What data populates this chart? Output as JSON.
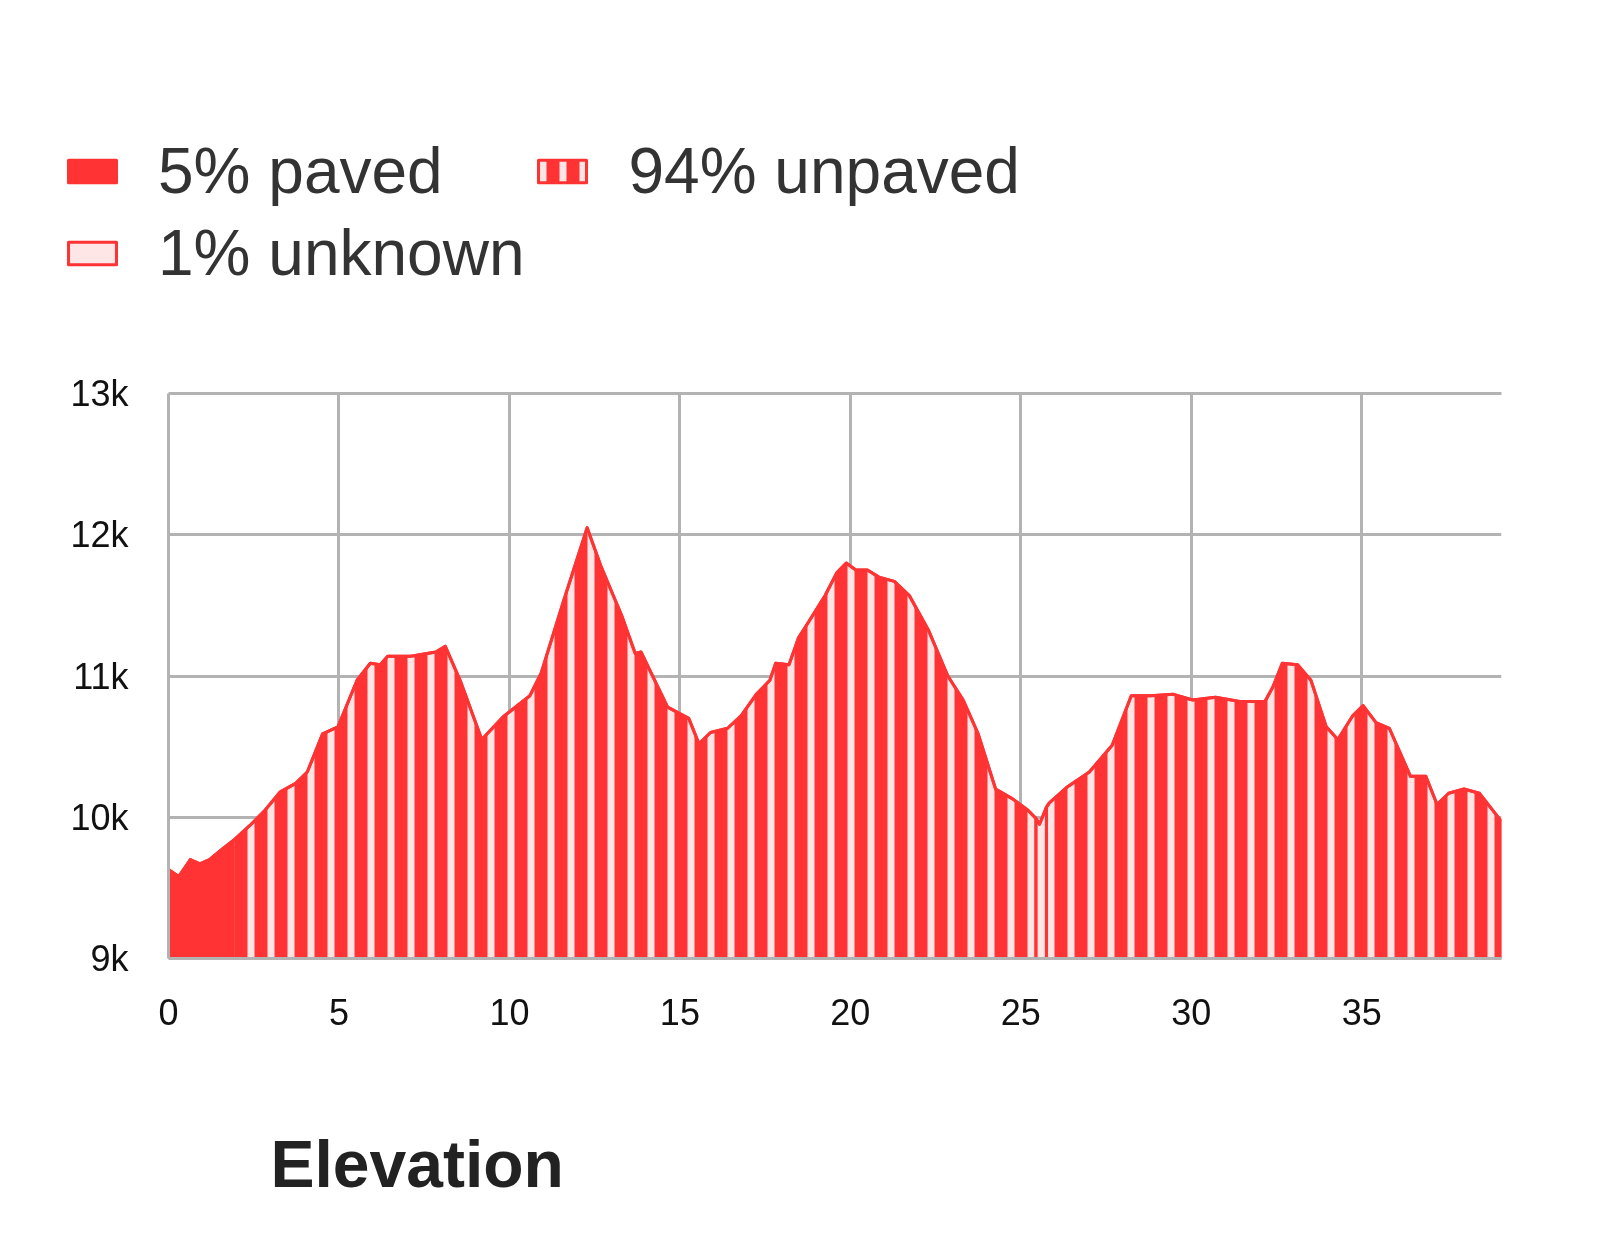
{
  "chart_data": {
    "type": "area",
    "xlim": [
      0,
      39.1
    ],
    "ylim": [
      9000,
      13000
    ],
    "xticks": [
      0,
      5,
      10,
      15,
      20,
      25,
      30,
      35
    ],
    "yticks": [
      {
        "value": 9000,
        "label": "9k"
      },
      {
        "value": 10000,
        "label": "10k"
      },
      {
        "value": 11000,
        "label": "11k"
      },
      {
        "value": 12000,
        "label": "12k"
      },
      {
        "value": 13000,
        "label": "13k"
      }
    ],
    "grid": true,
    "legend": "top left",
    "series": [
      {
        "name": "5% paved",
        "color": "#ff3333",
        "x": [
          0,
          0.3,
          0.64,
          0.92,
          1.2,
          1.6,
          1.9
        ],
        "values": [
          9630,
          9580,
          9700,
          9670,
          9700,
          9780,
          9835
        ]
      },
      {
        "name": "94% unpaved",
        "color": "#ff3333",
        "x": [
          1.9,
          2.38,
          2.83,
          3.28,
          3.73,
          4.07,
          4.52,
          4.97,
          5.53,
          5.92,
          6.21,
          6.43,
          7.11,
          7.84,
          8.12,
          8.57,
          9.19,
          9.81,
          10.6,
          10.93,
          11.6,
          12.28,
          12.68,
          13.29,
          13.69,
          13.86,
          14.64,
          15.26,
          15.56,
          15.9,
          16.4,
          16.8,
          17.24,
          17.64,
          17.81,
          18.2,
          18.48,
          18.82,
          19.26,
          19.6,
          19.88,
          20.16,
          20.5,
          20.84,
          21.29,
          21.73,
          22.3,
          22.86,
          23.31,
          23.75,
          24.26,
          24.76,
          25.21,
          25.45,
          null,
          25.75,
          25.83,
          26.34,
          27.01,
          27.68,
          28.24,
          28.8,
          29.48,
          30.04,
          30.71,
          31.42,
          32.16,
          32.39,
          32.67,
          33.12,
          33.51,
          33.96,
          34.3,
          34.74,
          35.04,
          35.42,
          35.81,
          36.43,
          36.88,
          37.21,
          37.55,
          38.0,
          38.45,
          38.84,
          39.1
        ],
        "values": [
          9835,
          9940,
          10050,
          10180,
          10240,
          10320,
          10590,
          10640,
          10970,
          11090,
          11080,
          11140,
          11140,
          11170,
          11210,
          10960,
          10550,
          10710,
          10860,
          11020,
          11540,
          12050,
          11780,
          11430,
          11160,
          11170,
          10780,
          10700,
          10520,
          10600,
          10630,
          10720,
          10870,
          10970,
          11090,
          11080,
          11270,
          11400,
          11570,
          11730,
          11800,
          11750,
          11750,
          11700,
          11670,
          11570,
          11320,
          11000,
          10830,
          10590,
          10200,
          10130,
          10050,
          9990,
          null,
          10070,
          10100,
          10210,
          10320,
          10510,
          10860,
          10860,
          10870,
          10830,
          10850,
          10820,
          10820,
          10920,
          11090,
          11080,
          10970,
          10640,
          10550,
          10720,
          10790,
          10670,
          10630,
          10290,
          10290,
          10090,
          10170,
          10200,
          10170,
          10050,
          9970
        ]
      },
      {
        "name": "1% unknown",
        "color": "#ff3333",
        "x": [
          25.45,
          25.55,
          25.75
        ],
        "values": [
          9990,
          9950,
          10070
        ]
      }
    ],
    "annotations": [
      "Elevation"
    ]
  }
}
